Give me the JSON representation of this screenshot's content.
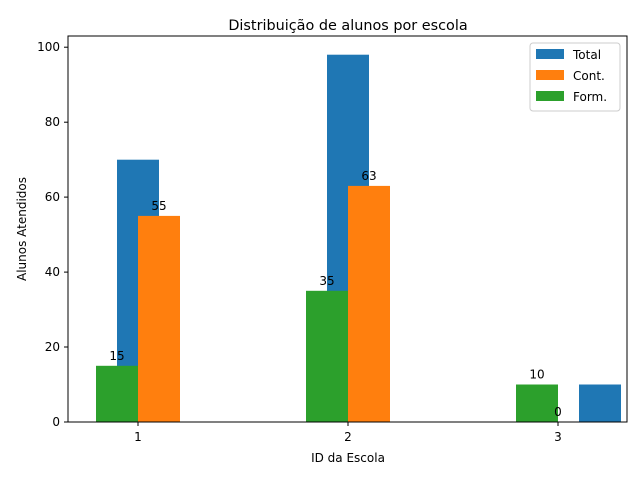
{
  "chart_data": {
    "type": "bar",
    "title": "Distribuição de alunos por escola",
    "xlabel": "ID da Escola",
    "ylabel": "Alunos Atendidos",
    "categories": [
      "1",
      "2",
      "3"
    ],
    "ylim": [
      0,
      103
    ],
    "yticks": [
      "0",
      "20",
      "40",
      "60",
      "80",
      "100"
    ],
    "grid": false,
    "legend_position": "top-right",
    "series": [
      {
        "name": "Total",
        "color": "#1f77b4",
        "values": [
          70,
          98,
          10
        ]
      },
      {
        "name": "Cont.",
        "color": "#ff7f0e",
        "values": [
          55,
          63,
          0
        ]
      },
      {
        "name": "Form.",
        "color": "#2ca02c",
        "values": [
          15,
          35,
          10
        ]
      }
    ],
    "data_labels": [
      {
        "series": "Form.",
        "category": "1",
        "text": "15"
      },
      {
        "series": "Cont.",
        "category": "1",
        "text": "55"
      },
      {
        "series": "Form.",
        "category": "2",
        "text": "35"
      },
      {
        "series": "Cont.",
        "category": "2",
        "text": "63"
      },
      {
        "series": "Form.",
        "category": "3",
        "text": "10"
      },
      {
        "series": "Cont.",
        "category": "3",
        "text": "0"
      }
    ]
  }
}
